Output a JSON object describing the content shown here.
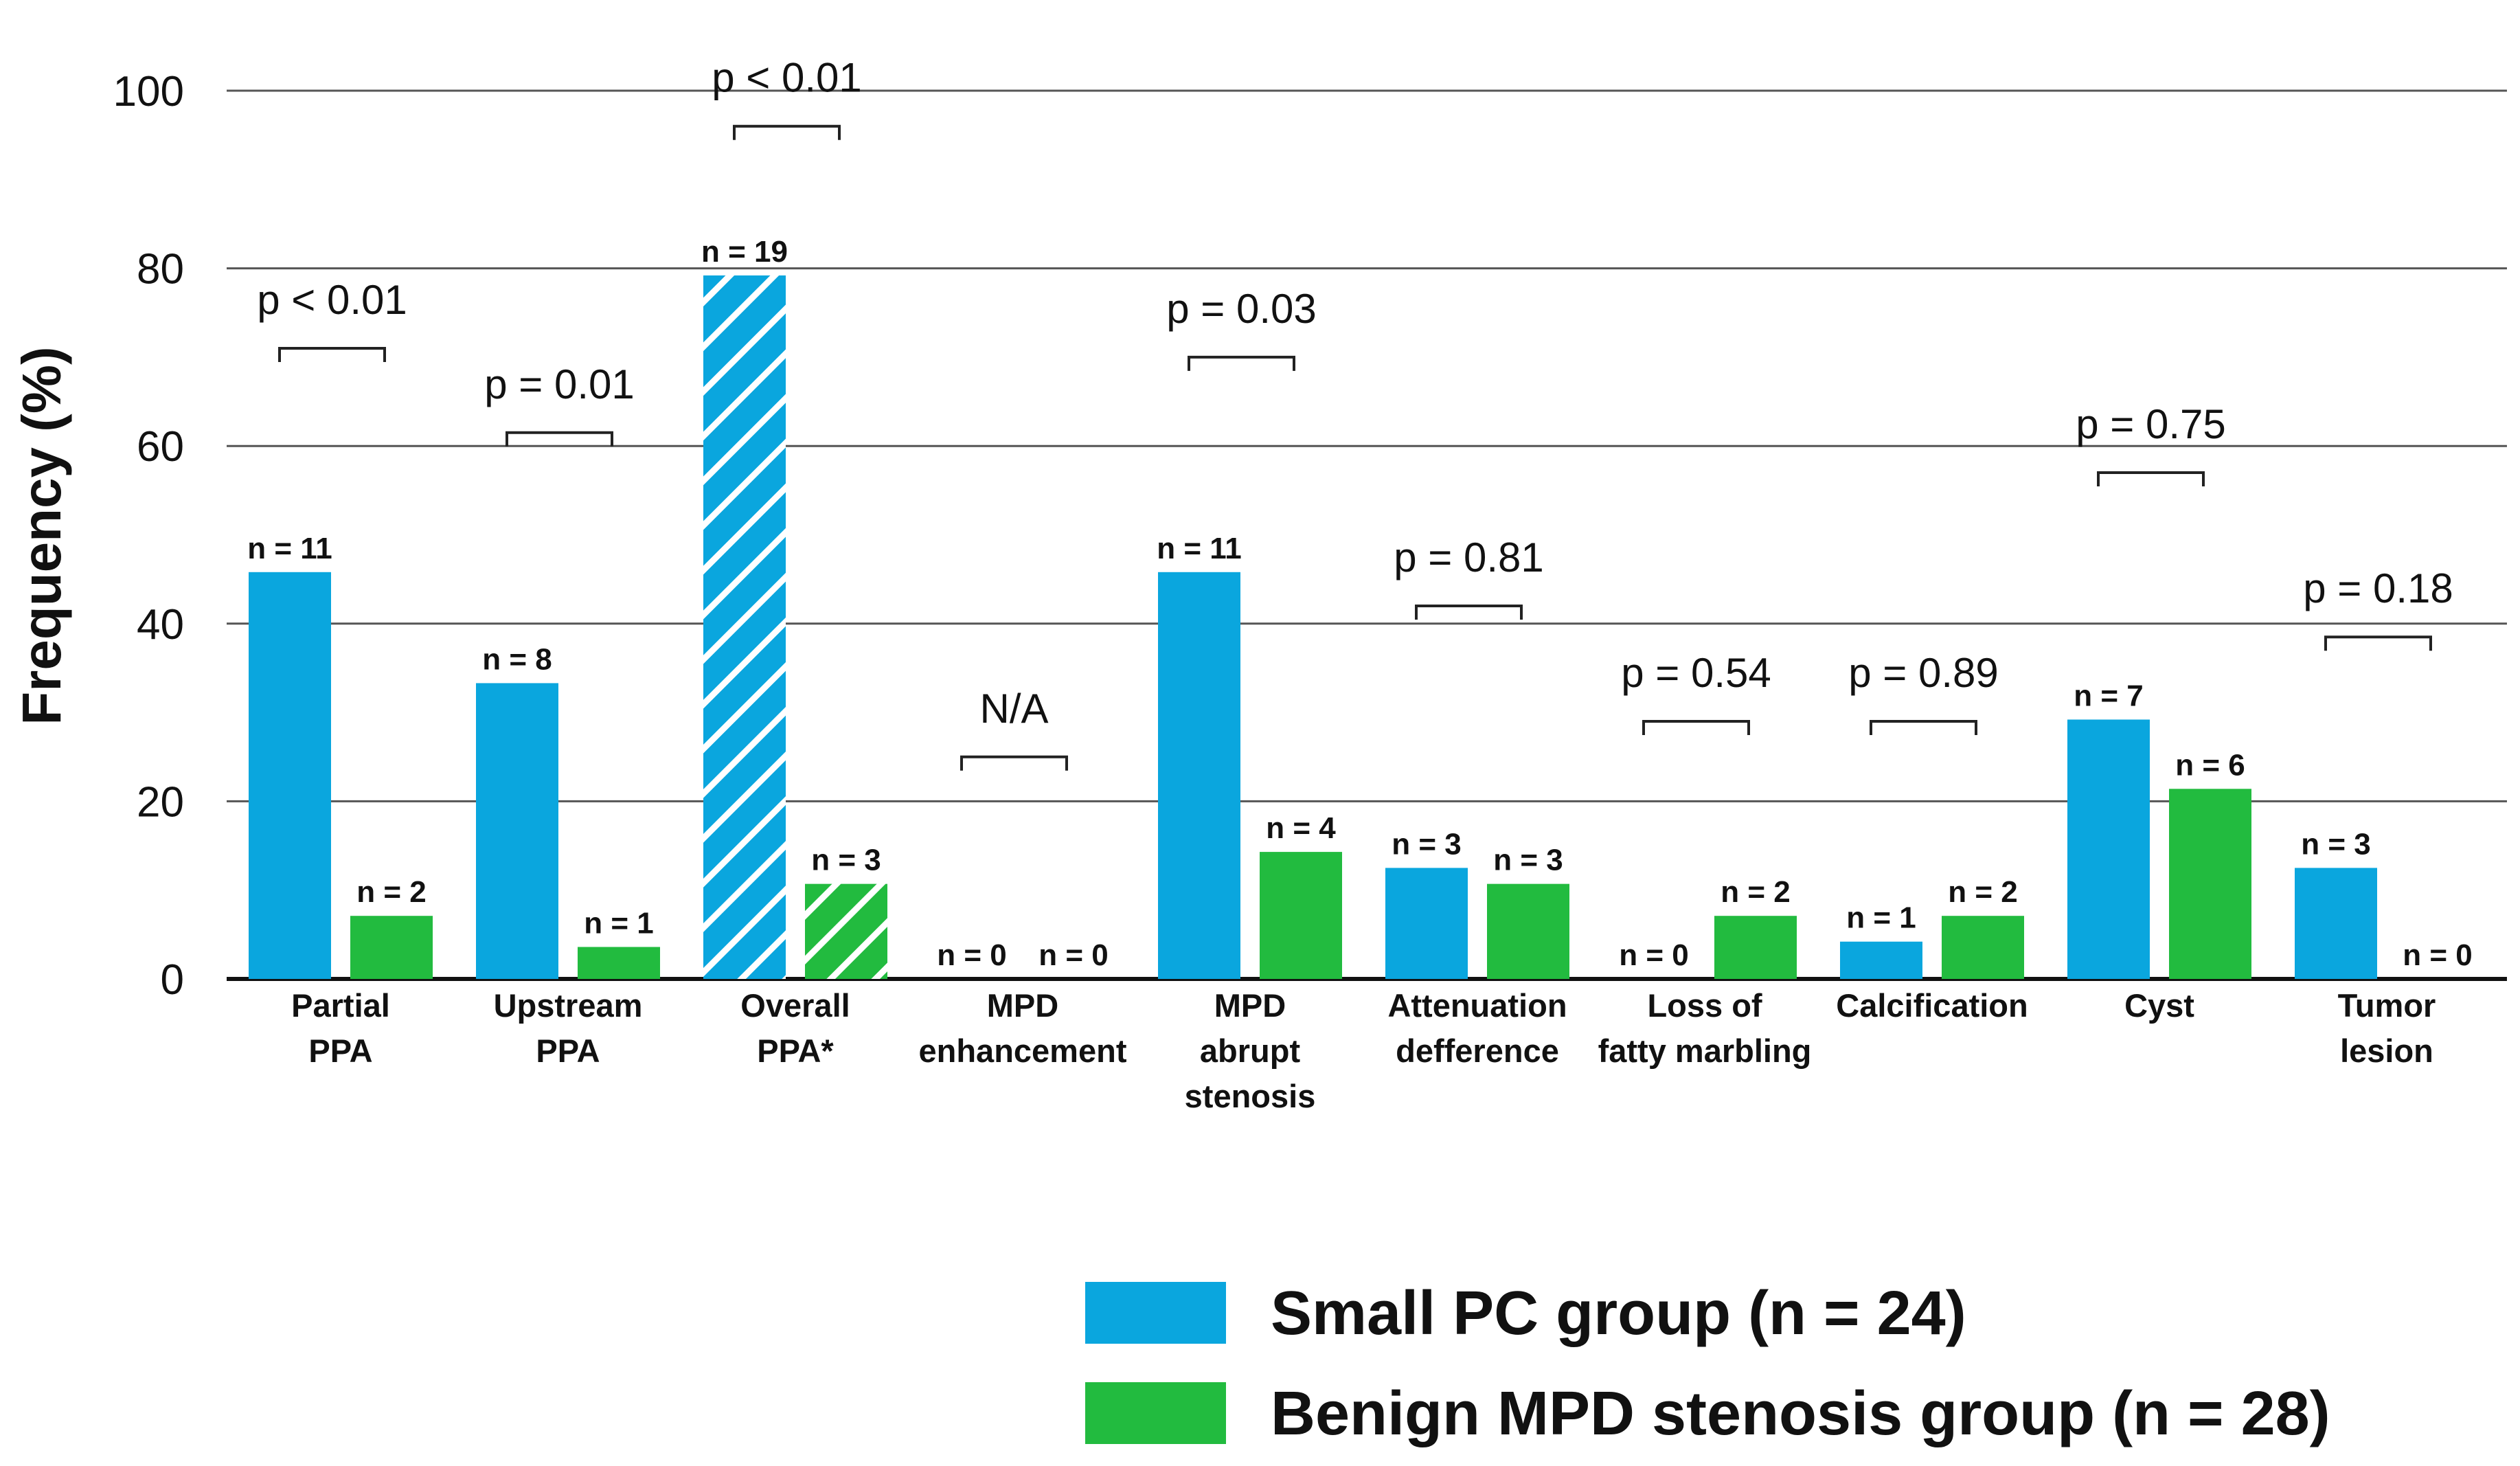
{
  "chart_data": {
    "type": "bar",
    "title": "",
    "xlabel": "",
    "ylabel": "Frequency (%)",
    "ylim": [
      0,
      100
    ],
    "yticks": [
      0,
      20,
      40,
      60,
      80,
      100
    ],
    "grid": true,
    "categories": [
      [
        "Partial",
        "PPA"
      ],
      [
        "Upstream",
        "PPA"
      ],
      [
        "Overall",
        "PPA*"
      ],
      [
        "MPD",
        "enhancement"
      ],
      [
        "MPD",
        "abrupt",
        "stenosis"
      ],
      [
        "Attenuation",
        "defference"
      ],
      [
        "Loss of",
        "fatty marbling"
      ],
      [
        "Calcification"
      ],
      [
        "Cyst"
      ],
      [
        "Tumor",
        "lesion"
      ]
    ],
    "series": [
      {
        "name": "Small PC group (n = 24)",
        "color": "#0aa6de",
        "values": [
          45.8,
          33.3,
          79.2,
          0,
          45.8,
          12.5,
          0,
          4.2,
          29.2,
          12.5
        ],
        "counts": [
          "n = 11",
          "n = 8",
          "n = 19",
          "n = 0",
          "n = 11",
          "n = 3",
          "n = 0",
          "n = 1",
          "n = 7",
          "n = 3"
        ]
      },
      {
        "name": "Benign MPD stenosis group (n = 28)",
        "color": "#22bb3f",
        "values": [
          7.1,
          3.6,
          10.7,
          0,
          14.3,
          10.7,
          7.1,
          7.1,
          21.4,
          0
        ],
        "counts": [
          "n = 2",
          "n = 1",
          "n = 3",
          "n = 0",
          "n = 4",
          "n = 3",
          "n = 2",
          "n = 2",
          "n = 6",
          "n = 0"
        ]
      }
    ],
    "hatched_category_index": 2,
    "p_values": [
      "p < 0.01",
      "p = 0.01",
      "p < 0.01",
      "N/A",
      "p = 0.03",
      "p = 0.81",
      "p = 0.54",
      "p = 0.89",
      "p = 0.75",
      "p = 0.18"
    ],
    "bracket_tops": [
      71,
      61.5,
      96,
      25,
      70,
      42,
      29,
      29,
      57,
      38.5
    ],
    "legend_position": "bottom-right"
  }
}
